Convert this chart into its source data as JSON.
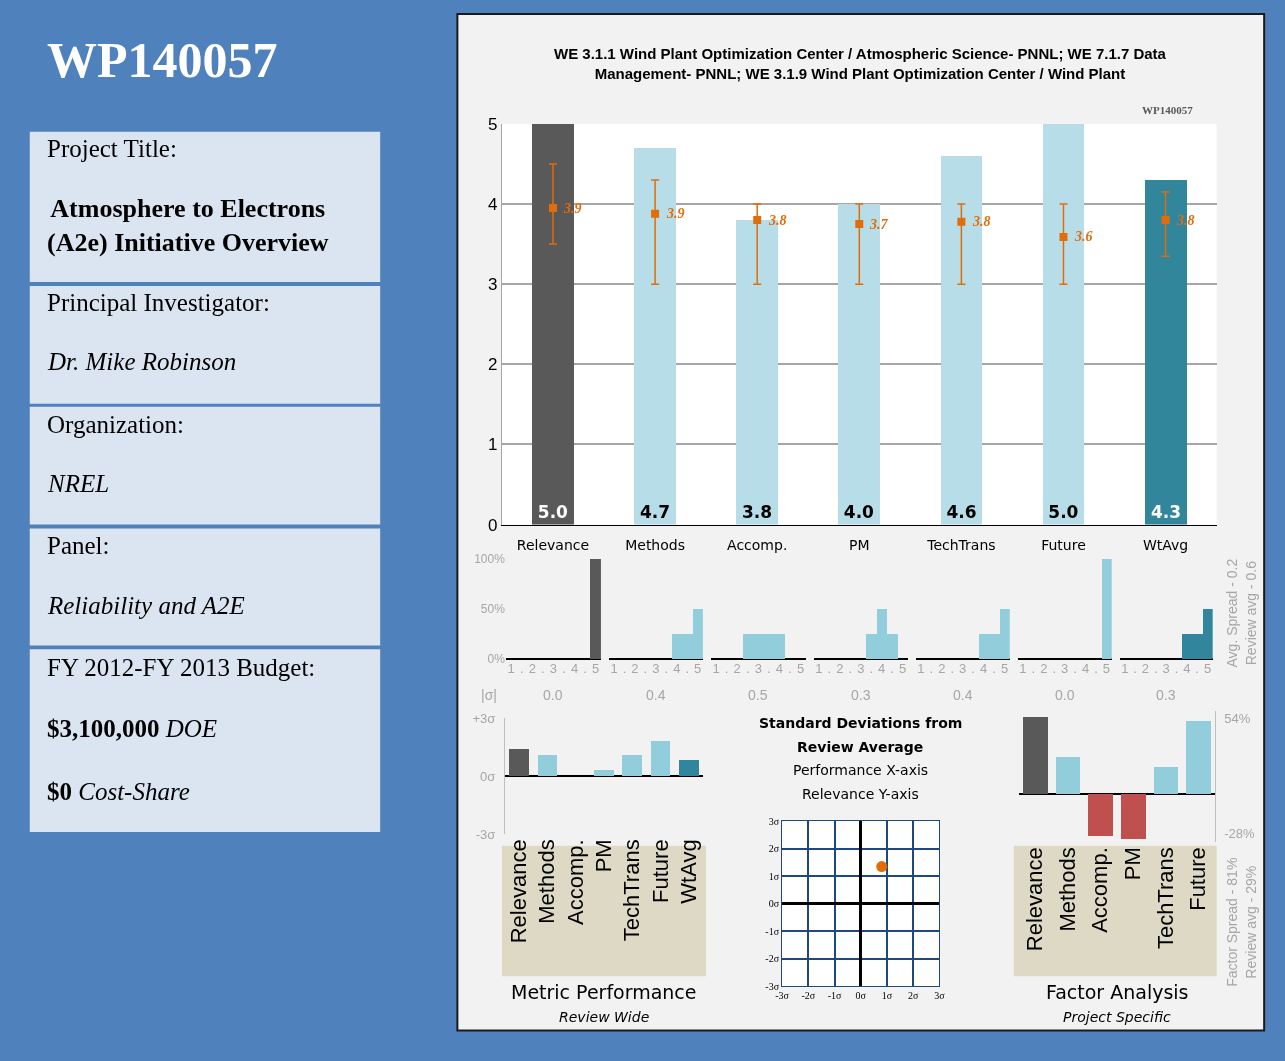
{
  "chart_data": [
    {
      "type": "other",
      "title": "WP140057",
      "annotations": [
        "Project Title:",
        "Atmosphere to Electrons (A2e) Initiative Overview",
        "Principal Investigator:",
        "Dr. Mike Robinson",
        "Organization:",
        "NREL",
        "Panel:",
        "Reliability and A2E",
        "FY 2012-FY 2013 Budget:",
        "$3,100,000 DOE",
        "$0 Cost-Share"
      ]
    },
    {
      "type": "bar",
      "title": "WE 3.1.1 Wind Plant Optimization Center / Atmospheric Science- PNNL; WE 7.1.7 Data Management- PNNL; WE 3.1.9 Wind Plant Optimization Center / Wind Plant",
      "annotations": [
        "WP140057"
      ],
      "categories": [
        "Relevance",
        "Methods",
        "Accomp.",
        "PM",
        "TechTrans",
        "Future",
        "WtAvg"
      ],
      "ylim": [
        0,
        5
      ],
      "yticks": [
        0,
        1,
        2,
        3,
        4,
        5
      ],
      "grid": "y",
      "series": [
        {
          "colors": [
            "#595959",
            "#b7dde8",
            "#b7dde8",
            "#b7dde8",
            "#b7dde8",
            "#b7dde8",
            "#31869b"
          ],
          "values": [
            5.0,
            4.7,
            3.8,
            4.0,
            4.6,
            5.0,
            4.3
          ],
          "value_labels": [
            "5.0",
            "4.7",
            "3.8",
            "4.0",
            "4.6",
            "5.0",
            "4.3"
          ]
        },
        {
          "type": "scatter",
          "marker": "square",
          "color": "#e36c09",
          "values": [
            3.95,
            3.88,
            3.8,
            3.75,
            3.78,
            3.59,
            3.8
          ],
          "value_labels": [
            "3.9",
            "3.9",
            "3.8",
            "3.7",
            "3.8",
            "3.6",
            "3.8"
          ],
          "errors": [
            [
              3.5,
              4.5
            ],
            [
              3.0,
              4.3
            ],
            [
              3.0,
              4.0
            ],
            [
              3.0,
              4.0
            ],
            [
              3.0,
              4.0
            ],
            [
              3.0,
              4.0
            ],
            [
              3.35,
              4.15
            ]
          ]
        }
      ]
    },
    {
      "type": "histogram",
      "xlabel": "|σ|",
      "annotations": [
        "0.0"
      ],
      "bins": [
        0.75,
        1.25,
        1.75,
        2.25,
        2.75,
        3.25,
        3.75,
        4.25,
        4.75,
        5.25
      ],
      "values": [
        0,
        0,
        0,
        0,
        0,
        0,
        0,
        0,
        100
      ],
      "color": "#595959",
      "xlim": [
        0.75,
        5.25
      ],
      "xticks": [
        1,
        {
          "value": 1.5,
          "label": "."
        },
        2,
        {
          "value": 2.5,
          "label": "."
        },
        3,
        {
          "value": 3.5,
          "label": "."
        },
        4,
        {
          "value": 4.5,
          "label": "."
        },
        5
      ],
      "ylim": [
        0,
        100
      ],
      "yticks": [
        {
          "value": 0,
          "label": "0%"
        },
        {
          "value": 50,
          "label": "50%"
        },
        {
          "value": 100,
          "label": "100%"
        }
      ]
    },
    {
      "type": "histogram",
      "annotations": [
        "0.4"
      ],
      "bins": [
        0.75,
        1.25,
        1.75,
        2.25,
        2.75,
        3.25,
        3.75,
        4.25,
        4.75,
        5.25
      ],
      "values": [
        0,
        0,
        0,
        0,
        0,
        0,
        25,
        25,
        50
      ],
      "color": "#92cddc",
      "xlim": [
        0.75,
        5.25
      ],
      "xticks": [
        1,
        {
          "value": 1.5,
          "label": "."
        },
        2,
        {
          "value": 2.5,
          "label": "."
        },
        3,
        {
          "value": 3.5,
          "label": "."
        },
        4,
        {
          "value": 4.5,
          "label": "."
        },
        5
      ],
      "ylim": [
        0,
        100
      ],
      "tick_labels": "x"
    },
    {
      "type": "histogram",
      "annotations": [
        "0.5"
      ],
      "bins": [
        0.75,
        1.25,
        1.75,
        2.25,
        2.75,
        3.25,
        3.75,
        4.25,
        4.75,
        5.25
      ],
      "values": [
        0,
        0,
        0,
        25,
        25,
        25,
        25,
        0,
        0
      ],
      "color": "#92cddc",
      "xlim": [
        0.75,
        5.25
      ],
      "xticks": [
        1,
        {
          "value": 1.5,
          "label": "."
        },
        2,
        {
          "value": 2.5,
          "label": "."
        },
        3,
        {
          "value": 3.5,
          "label": "."
        },
        4,
        {
          "value": 4.5,
          "label": "."
        },
        5
      ],
      "ylim": [
        0,
        100
      ],
      "tick_labels": "x"
    },
    {
      "type": "histogram",
      "annotations": [
        "0.3"
      ],
      "bins": [
        0.75,
        1.25,
        1.75,
        2.25,
        2.75,
        3.25,
        3.75,
        4.25,
        4.75,
        5.25
      ],
      "values": [
        0,
        0,
        0,
        0,
        0,
        25,
        50,
        25,
        0
      ],
      "color": "#92cddc",
      "xlim": [
        0.75,
        5.25
      ],
      "xticks": [
        1,
        {
          "value": 1.5,
          "label": "."
        },
        2,
        {
          "value": 2.5,
          "label": "."
        },
        3,
        {
          "value": 3.5,
          "label": "."
        },
        4,
        {
          "value": 4.5,
          "label": "."
        },
        5
      ],
      "ylim": [
        0,
        100
      ],
      "tick_labels": "x"
    },
    {
      "type": "histogram",
      "annotations": [
        "0.4"
      ],
      "bins": [
        0.75,
        1.25,
        1.75,
        2.25,
        2.75,
        3.25,
        3.75,
        4.25,
        4.75,
        5.25
      ],
      "values": [
        0,
        0,
        0,
        0,
        0,
        0,
        25,
        25,
        50
      ],
      "color": "#92cddc",
      "xlim": [
        0.75,
        5.25
      ],
      "xticks": [
        1,
        {
          "value": 1.5,
          "label": "."
        },
        2,
        {
          "value": 2.5,
          "label": "."
        },
        3,
        {
          "value": 3.5,
          "label": "."
        },
        4,
        {
          "value": 4.5,
          "label": "."
        },
        5
      ],
      "ylim": [
        0,
        100
      ],
      "tick_labels": "x"
    },
    {
      "type": "histogram",
      "annotations": [
        "0.0"
      ],
      "bins": [
        0.75,
        1.25,
        1.75,
        2.25,
        2.75,
        3.25,
        3.75,
        4.25,
        4.75,
        5.25
      ],
      "values": [
        0,
        0,
        0,
        0,
        0,
        0,
        0,
        0,
        100
      ],
      "color": "#92cddc",
      "xlim": [
        0.75,
        5.25
      ],
      "xticks": [
        1,
        {
          "value": 1.5,
          "label": "."
        },
        2,
        {
          "value": 2.5,
          "label": "."
        },
        3,
        {
          "value": 3.5,
          "label": "."
        },
        4,
        {
          "value": 4.5,
          "label": "."
        },
        5
      ],
      "ylim": [
        0,
        100
      ],
      "tick_labels": "x"
    },
    {
      "type": "histogram",
      "annotations": [
        "0.3",
        "Avg. Spread - 0.2",
        "Review avg - 0.6"
      ],
      "bins": [
        0.75,
        1.25,
        1.75,
        2.25,
        2.75,
        3.25,
        3.75,
        4.25,
        4.75,
        5.25
      ],
      "values": [
        0,
        0,
        0,
        0,
        0,
        0,
        25,
        25,
        50
      ],
      "color": "#31859c",
      "xlim": [
        0.75,
        5.25
      ],
      "xticks": [
        1,
        {
          "value": 1.5,
          "label": "."
        },
        2,
        {
          "value": 2.5,
          "label": "."
        },
        3,
        {
          "value": 3.5,
          "label": "."
        },
        4,
        {
          "value": 4.5,
          "label": "."
        },
        5
      ],
      "ylim": [
        0,
        100
      ],
      "tick_labels": "x"
    },
    {
      "type": "bar",
      "title": "Metric Performance",
      "subtitle": "Review Wide",
      "categories": [
        "Relevance",
        "Methods",
        "Accomp.",
        "PM",
        "TechTrans",
        "Future",
        "WtAvg"
      ],
      "values": [
        1.4,
        1.1,
        0,
        0.3,
        1.1,
        1.8,
        0.8
      ],
      "colors": [
        "#595959",
        "#92cddc",
        "#92cddc",
        "#92cddc",
        "#92cddc",
        "#92cddc",
        "#31859c"
      ],
      "ylim": [
        -3,
        3
      ],
      "yticks": [
        {
          "value": 3,
          "label": "+3σ"
        },
        {
          "value": 0,
          "label": "0σ"
        },
        {
          "value": -3,
          "label": "-3σ"
        }
      ]
    },
    {
      "type": "scatter",
      "title": "Standard Deviations from Review Average",
      "xlabel": "Performance X-axis",
      "ylabel": "Relevance Y-axis",
      "x": [
        0.8
      ],
      "values": [
        1.35
      ],
      "color": "#e36c09",
      "marker": "circle",
      "grid": true,
      "xlim": [
        -3,
        3
      ],
      "ylim": [
        -3,
        3
      ],
      "xticks": [
        {
          "value": -3,
          "label": "-3σ"
        },
        {
          "value": -2,
          "label": "-2σ"
        },
        {
          "value": -1,
          "label": "-1σ"
        },
        {
          "value": 0,
          "label": "0σ"
        },
        {
          "value": 1,
          "label": "1σ"
        },
        {
          "value": 2,
          "label": "2σ"
        },
        {
          "value": 3,
          "label": "3σ"
        }
      ],
      "yticks": [
        {
          "value": -3,
          "label": "-3σ"
        },
        {
          "value": -2,
          "label": "-2σ"
        },
        {
          "value": -1,
          "label": "-1σ"
        },
        {
          "value": 0,
          "label": "0σ"
        },
        {
          "value": 1,
          "label": "1σ"
        },
        {
          "value": 2,
          "label": "2σ"
        },
        {
          "value": 3,
          "label": "3σ"
        }
      ]
    },
    {
      "type": "bar",
      "title": "Factor Analysis",
      "subtitle": "Project Specific",
      "annotations": [
        "Factor Spread - 81%",
        "Review avg - 29%"
      ],
      "categories": [
        "Relevance",
        "Methods",
        "Accomp.",
        "PM",
        "TechTrans",
        "Future"
      ],
      "values": [
        55,
        26,
        -30,
        -32,
        19,
        52
      ],
      "colors": [
        "#595959",
        "#92cddc",
        "#c0504d",
        "#c0504d",
        "#92cddc",
        "#92cddc"
      ],
      "ylim": [
        -34,
        59
      ],
      "yticks": [
        {
          "value": 54,
          "label": "54%"
        },
        {
          "value": -28,
          "label": "-28%"
        }
      ]
    }
  ]
}
